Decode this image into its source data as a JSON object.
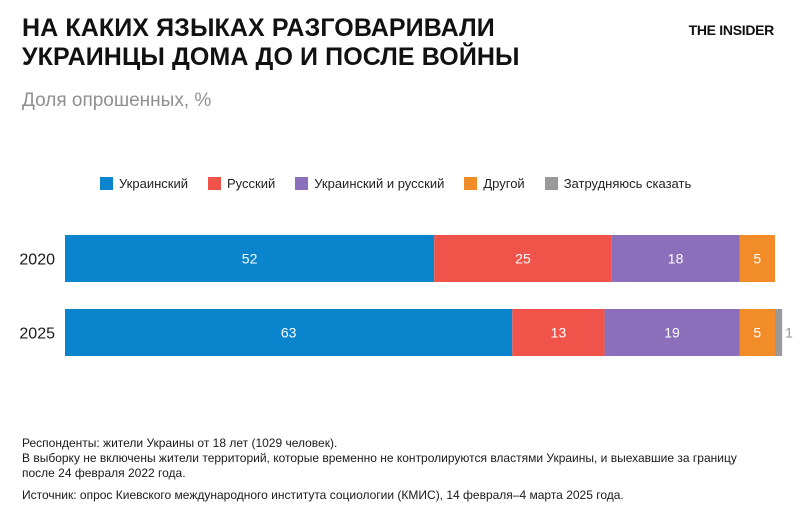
{
  "header": {
    "title_line1": "НА КАКИХ ЯЗЫКАХ РАЗГОВАРИВАЛИ",
    "title_line2": "УКРАИНЦЫ ДОМА ДО И ПОСЛЕ ВОЙНЫ",
    "brand": "THE INSIDER",
    "subtitle": "Доля опрошенных, %"
  },
  "footer": {
    "respondents": "Респонденты: жители Украины от 18 лет (1029 человек).",
    "note": "В выборку не включены жители территорий, которые временно не контролируются властями Украины, и выехавшие за границу после 24 февраля 2022 года.",
    "source": "Источник: опрос Киевского международного института социологии (КМИС), 14 февраля–4 марта 2025 года."
  },
  "chart_data": {
    "type": "bar",
    "orientation": "horizontal",
    "stacked": true,
    "title": "НА КАКИХ ЯЗЫКАХ РАЗГОВАРИВАЛИ УКРАИНЦЫ ДОМА ДО И ПОСЛЕ ВОЙНЫ",
    "subtitle": "Доля опрошенных, %",
    "categories": [
      "2020",
      "2025"
    ],
    "xlim": [
      0,
      100
    ],
    "grid": false,
    "legend_position": "top",
    "series": [
      {
        "name": "Украинский",
        "color": "#0a84cc",
        "values": [
          52,
          63
        ]
      },
      {
        "name": "Русский",
        "color": "#f0534a",
        "values": [
          25,
          13
        ]
      },
      {
        "name": "Украинский и русский",
        "color": "#8c6fba",
        "values": [
          18,
          19
        ]
      },
      {
        "name": "Другой",
        "color": "#f28c28",
        "values": [
          5,
          5
        ]
      },
      {
        "name": "Затрудняюсь сказать",
        "color": "#999999",
        "values": [
          0,
          1
        ]
      }
    ]
  }
}
